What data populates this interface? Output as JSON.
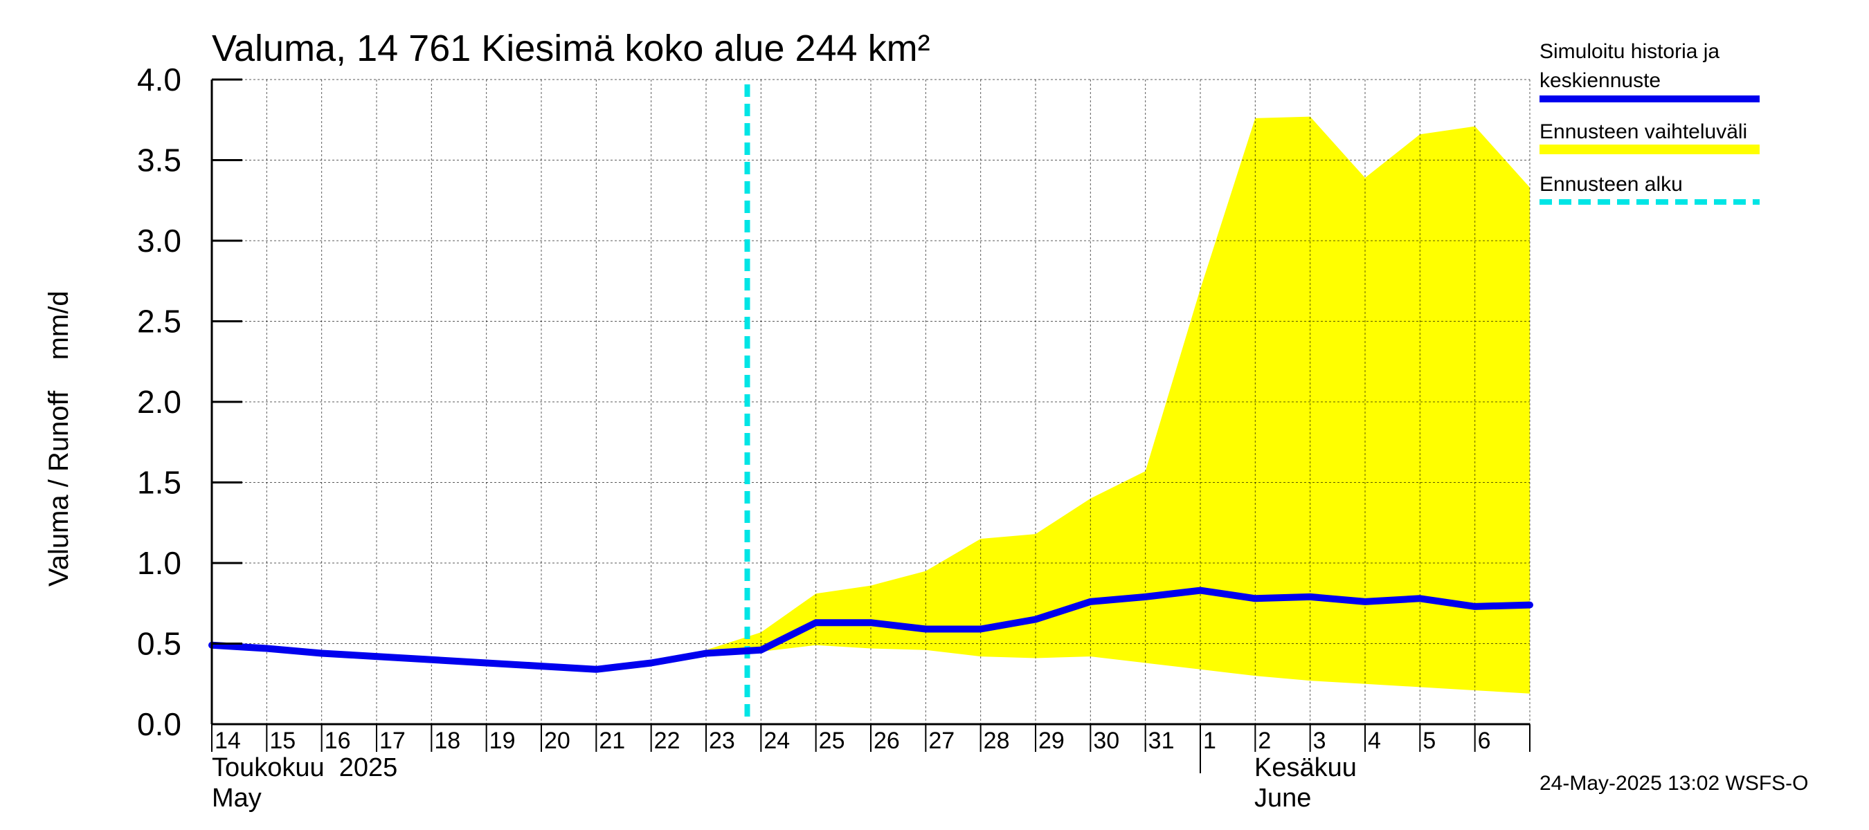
{
  "chart_data": {
    "type": "area",
    "title": "Valuma, 14 761 Kiesimä koko alue 244 km²",
    "ylabel": "Valuma / Runoff    mm/d",
    "ylim": [
      0,
      4.0
    ],
    "yticks": [
      0.0,
      0.5,
      1.0,
      1.5,
      2.0,
      2.5,
      3.0,
      3.5,
      4.0
    ],
    "ytick_labels": [
      "0.0",
      "0.5",
      "1.0",
      "1.5",
      "2.0",
      "2.5",
      "3.0",
      "3.5",
      "4.0"
    ],
    "x_tick_labels": [
      "14",
      "15",
      "16",
      "17",
      "18",
      "19",
      "20",
      "21",
      "22",
      "23",
      "24",
      "25",
      "26",
      "27",
      "28",
      "29",
      "30",
      "31",
      "1",
      "2",
      "3",
      "4",
      "5",
      "6"
    ],
    "month_labels": [
      {
        "line1": "Toukokuu  2025",
        "line2": "May"
      },
      {
        "line1": "Kesäkuu",
        "line2": "June"
      }
    ],
    "forecast_start_label": "24",
    "series": [
      {
        "name": "Simuloitu historia ja keskiennuste",
        "color": "#0000ee",
        "values": [
          0.49,
          0.47,
          0.44,
          0.42,
          0.4,
          0.38,
          0.36,
          0.34,
          0.38,
          0.44,
          0.46,
          0.63,
          0.63,
          0.59,
          0.59,
          0.65,
          0.76,
          0.79,
          0.83,
          0.78,
          0.79,
          0.76,
          0.78,
          0.73,
          0.74
        ]
      },
      {
        "name": "Ennusteen vaihteluväli",
        "color": "#ffff00",
        "band_upper": [
          null,
          null,
          null,
          null,
          null,
          null,
          null,
          null,
          null,
          0.46,
          0.57,
          0.81,
          0.86,
          0.95,
          1.15,
          1.18,
          1.4,
          1.57,
          2.7,
          3.76,
          3.77,
          3.39,
          3.66,
          3.71,
          3.33
        ],
        "band_lower": [
          null,
          null,
          null,
          null,
          null,
          null,
          null,
          null,
          null,
          0.44,
          0.45,
          0.49,
          0.47,
          0.46,
          0.42,
          0.41,
          0.42,
          0.38,
          0.34,
          0.3,
          0.27,
          0.25,
          0.23,
          0.21,
          0.19
        ]
      },
      {
        "name": "Ennusteen alku",
        "color": "#00e5e5"
      }
    ],
    "grid": true,
    "legend_position": "right"
  },
  "timestamp": "24-May-2025 13:02 WSFS-O"
}
